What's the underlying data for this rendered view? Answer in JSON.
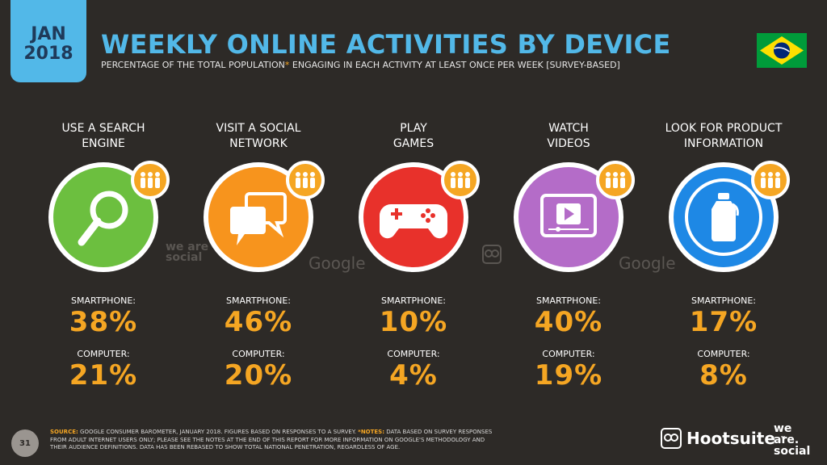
{
  "header": {
    "month": "JAN",
    "year": "2018",
    "title": "WEEKLY ONLINE ACTIVITIES BY DEVICE",
    "subtitle_pre": "PERCENTAGE OF THE TOTAL POPULATION",
    "subtitle_star": "*",
    "subtitle_post": " ENGAGING IN EACH ACTIVITY AT LEAST ONCE PER WEEK [SURVEY-BASED]",
    "flag_icon": "brazil-flag-icon"
  },
  "device_labels": {
    "smartphone": "SMARTPHONE:",
    "computer": "COMPUTER:"
  },
  "activities": [
    {
      "label_line1": "USE A SEARCH",
      "label_line2": "ENGINE",
      "color": "#6cbf3f",
      "icon": "magnifier-icon",
      "smartphone": "38%",
      "computer": "21%"
    },
    {
      "label_line1": "VISIT A SOCIAL",
      "label_line2": "NETWORK",
      "color": "#f7941d",
      "icon": "speech-bubbles-icon",
      "smartphone": "46%",
      "computer": "20%"
    },
    {
      "label_line1": "PLAY",
      "label_line2": "GAMES",
      "color": "#e8312b",
      "icon": "gamepad-icon",
      "smartphone": "10%",
      "computer": "4%"
    },
    {
      "label_line1": "WATCH",
      "label_line2": "VIDEOS",
      "color": "#b46cc8",
      "icon": "video-player-icon",
      "smartphone": "40%",
      "computer": "19%"
    },
    {
      "label_line1": "LOOK FOR PRODUCT",
      "label_line2": "INFORMATION",
      "color": "#1e88e5",
      "icon": "product-bottle-icon",
      "smartphone": "17%",
      "computer": "8%"
    }
  ],
  "watermarks": {
    "was": "we are social",
    "google": "Google"
  },
  "footer": {
    "page": "31",
    "source_label": "SOURCE:",
    "source_text": " GOOGLE CONSUMER BAROMETER, JANUARY 2018. FIGURES BASED ON RESPONSES TO A SURVEY. ",
    "notes_label": "*NOTES:",
    "notes_text": " DATA BASED ON SURVEY RESPONSES FROM ADULT INTERNET USERS ONLY; PLEASE SEE THE NOTES AT THE END OF THIS REPORT FOR MORE INFORMATION ON GOOGLE'S METHODOLOGY AND THEIR AUDIENCE DEFINITIONS. DATA HAS BEEN REBASED TO SHOW TOTAL NATIONAL PENETRATION, REGARDLESS OF AGE.",
    "brand": "Hootsuite",
    "brand_tm": "™",
    "was_line1": "we",
    "was_line2": "are.",
    "was_line3": "social"
  },
  "colors": {
    "accent_blue": "#52b8e8",
    "accent_orange": "#f5a623",
    "background": "#2d2a27"
  }
}
